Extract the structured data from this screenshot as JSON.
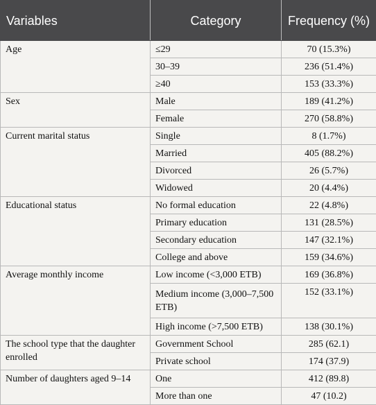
{
  "headers": {
    "variables": "Variables",
    "category": "Category",
    "frequency": "Frequency (%)"
  },
  "groups": [
    {
      "variable": "Age",
      "rows": [
        {
          "category": "≤29",
          "frequency": "70 (15.3%)"
        },
        {
          "category": "30–39",
          "frequency": "236 (51.4%)"
        },
        {
          "category": "≥40",
          "frequency": "153 (33.3%)"
        }
      ]
    },
    {
      "variable": "Sex",
      "rows": [
        {
          "category": "Male",
          "frequency": "189 (41.2%)"
        },
        {
          "category": "Female",
          "frequency": "270 (58.8%)"
        }
      ]
    },
    {
      "variable": "Current marital status",
      "rows": [
        {
          "category": "Single",
          "frequency": "8 (1.7%)"
        },
        {
          "category": "Married",
          "frequency": "405 (88.2%)"
        },
        {
          "category": "Divorced",
          "frequency": "26 (5.7%)"
        },
        {
          "category": "Widowed",
          "frequency": "20 (4.4%)"
        }
      ]
    },
    {
      "variable": "Educational status",
      "rows": [
        {
          "category": "No formal education",
          "frequency": "22 (4.8%)"
        },
        {
          "category": "Primary education",
          "frequency": "131 (28.5%)"
        },
        {
          "category": "Secondary education",
          "frequency": "147 (32.1%)"
        },
        {
          "category": "College and above",
          "frequency": "159 (34.6%)"
        }
      ]
    },
    {
      "variable": "Average monthly income",
      "rows": [
        {
          "category": "Low income (<3,000 ETB)",
          "frequency": "169 (36.8%)"
        },
        {
          "category": "Medium income (3,000–7,500 ETB)",
          "frequency": "152 (33.1%)"
        },
        {
          "category": "High income (>7,500 ETB)",
          "frequency": "138 (30.1%)"
        }
      ]
    },
    {
      "variable": "The school type that the daughter enrolled",
      "rows": [
        {
          "category": "Government School",
          "frequency": "285 (62.1)"
        },
        {
          "category": "Private school",
          "frequency": "174 (37.9)"
        }
      ]
    },
    {
      "variable": "Number of daughters aged 9–14",
      "rows": [
        {
          "category": "One",
          "frequency": "412 (89.8)"
        },
        {
          "category": "More than one",
          "frequency": "47 (10.2)"
        }
      ]
    }
  ]
}
